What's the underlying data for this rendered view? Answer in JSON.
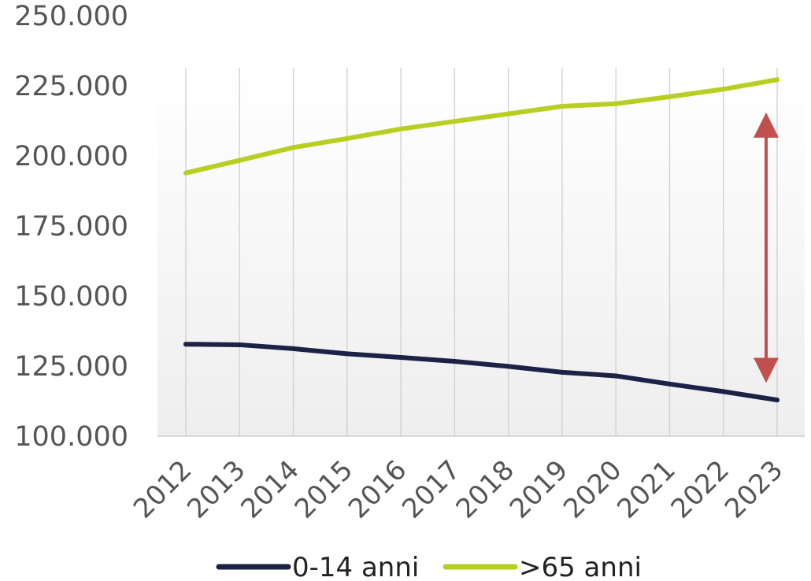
{
  "chart_data": {
    "type": "line",
    "title": "",
    "xlabel": "",
    "ylabel": "",
    "categories": [
      "2012",
      "2013",
      "2014",
      "2015",
      "2016",
      "2017",
      "2018",
      "2019",
      "2020",
      "2021",
      "2022",
      "2023"
    ],
    "ylim": [
      100000,
      250000
    ],
    "y_ticks": [
      100000,
      125000,
      150000,
      175000,
      200000,
      225000,
      250000
    ],
    "y_tick_labels": [
      "100.000",
      "125.000",
      "150.000",
      "175.000",
      "200.000",
      "225.000",
      "250.000"
    ],
    "grid": "vertical",
    "legend_position": "bottom",
    "series": [
      {
        "name": "0-14 anni",
        "color": "#1b2246",
        "values": [
          132800,
          132600,
          131200,
          129400,
          128100,
          126700,
          124900,
          122800,
          121500,
          118600,
          115900,
          112900
        ]
      },
      {
        "name": ">65 anni",
        "color": "#b8cf22",
        "values": [
          193900,
          198400,
          203000,
          206200,
          209600,
          212300,
          215000,
          217700,
          218600,
          221100,
          223800,
          227200
        ]
      }
    ],
    "annotations": [
      {
        "type": "double-arrow",
        "color": "#c0504d",
        "x": "2023",
        "y_from": 211000,
        "y_to": 123500
      }
    ]
  }
}
